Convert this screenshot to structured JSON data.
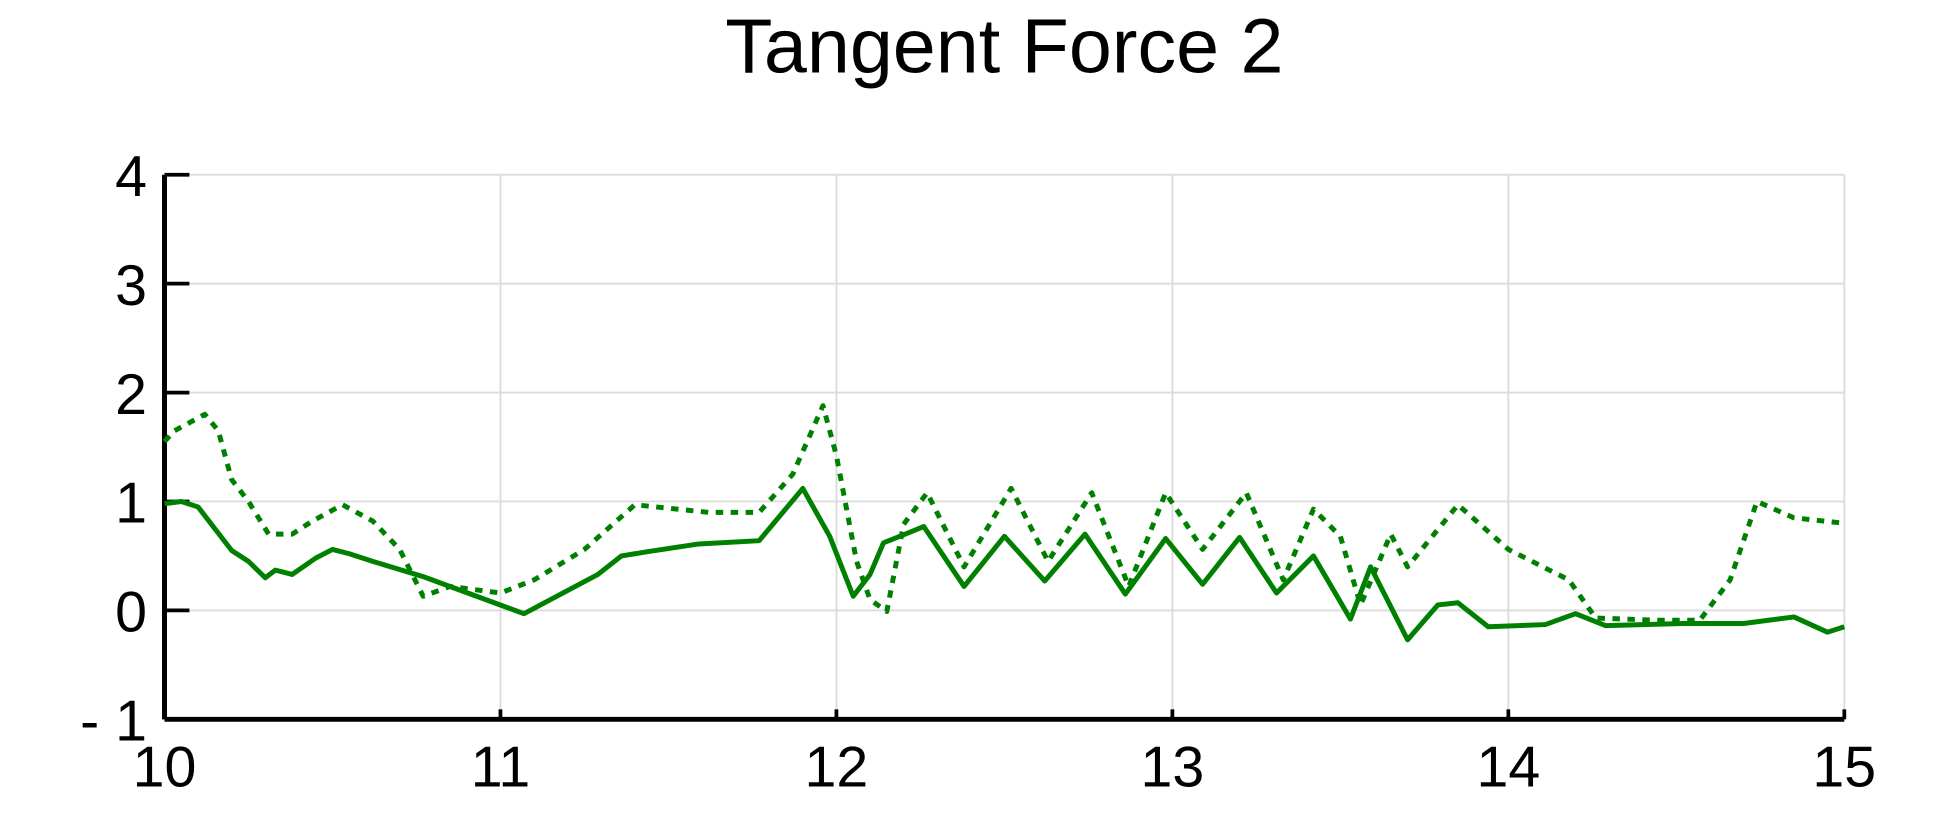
{
  "chart_data": {
    "type": "line",
    "title": "Tangent Force 2",
    "xlim": [
      10,
      15
    ],
    "xticks": [
      10,
      11,
      12,
      13,
      14,
      15
    ],
    "ylim": [
      -1,
      4
    ],
    "yticks": [
      {
        "value": -1,
        "label": "- 1"
      },
      0,
      1,
      2,
      3,
      4
    ],
    "grid": true,
    "series": [
      {
        "color": "#008000",
        "dash": false,
        "x": [
          10.0,
          10.05,
          10.1,
          10.15,
          10.2,
          10.25,
          10.3,
          10.33,
          10.38,
          10.45,
          10.5,
          10.55,
          10.62,
          10.77,
          11.07,
          11.29,
          11.36,
          11.44,
          11.59,
          11.77,
          11.9,
          11.98,
          12.05,
          12.1,
          12.14,
          12.26,
          12.38,
          12.5,
          12.62,
          12.74,
          12.86,
          12.98,
          13.09,
          13.2,
          13.31,
          13.42,
          13.53,
          13.59,
          13.7,
          13.79,
          13.85,
          13.94,
          14.11,
          14.2,
          14.29,
          14.52,
          14.7,
          14.85,
          14.95,
          15.0
        ],
        "values": [
          0.98,
          1.0,
          0.95,
          0.75,
          0.55,
          0.45,
          0.3,
          0.37,
          0.33,
          0.48,
          0.56,
          0.52,
          0.45,
          0.31,
          -0.03,
          0.33,
          0.5,
          0.54,
          0.61,
          0.64,
          1.12,
          0.68,
          0.13,
          0.33,
          0.62,
          0.77,
          0.22,
          0.68,
          0.27,
          0.7,
          0.15,
          0.66,
          0.24,
          0.67,
          0.16,
          0.5,
          -0.08,
          0.4,
          -0.27,
          0.05,
          0.07,
          -0.15,
          -0.13,
          -0.03,
          -0.14,
          -0.12,
          -0.12,
          -0.06,
          -0.2,
          -0.15
        ]
      },
      {
        "color": "#008000",
        "dash": true,
        "x": [
          10.0,
          10.03,
          10.12,
          10.16,
          10.2,
          10.25,
          10.31,
          10.38,
          10.44,
          10.53,
          10.62,
          10.7,
          10.77,
          10.85,
          11.0,
          11.1,
          11.25,
          11.4,
          11.62,
          11.77,
          11.87,
          11.96,
          12.0,
          12.06,
          12.1,
          12.15,
          12.2,
          12.27,
          12.38,
          12.52,
          12.63,
          12.76,
          12.87,
          12.98,
          13.09,
          13.22,
          13.33,
          13.42,
          13.5,
          13.56,
          13.65,
          13.7,
          13.85,
          14.0,
          14.18,
          14.26,
          14.44,
          14.57,
          14.66,
          14.74,
          14.85,
          15.0
        ],
        "values": [
          1.55,
          1.65,
          1.8,
          1.65,
          1.2,
          1.0,
          0.7,
          0.7,
          0.82,
          0.97,
          0.82,
          0.56,
          0.13,
          0.22,
          0.16,
          0.28,
          0.56,
          0.97,
          0.9,
          0.9,
          1.25,
          1.88,
          1.42,
          0.45,
          0.1,
          -0.01,
          0.79,
          1.08,
          0.4,
          1.12,
          0.45,
          1.08,
          0.22,
          1.08,
          0.56,
          1.08,
          0.28,
          0.93,
          0.68,
          0.05,
          0.7,
          0.4,
          0.97,
          0.56,
          0.28,
          -0.07,
          -0.09,
          -0.09,
          0.28,
          1.0,
          0.85,
          0.8
        ]
      }
    ]
  }
}
